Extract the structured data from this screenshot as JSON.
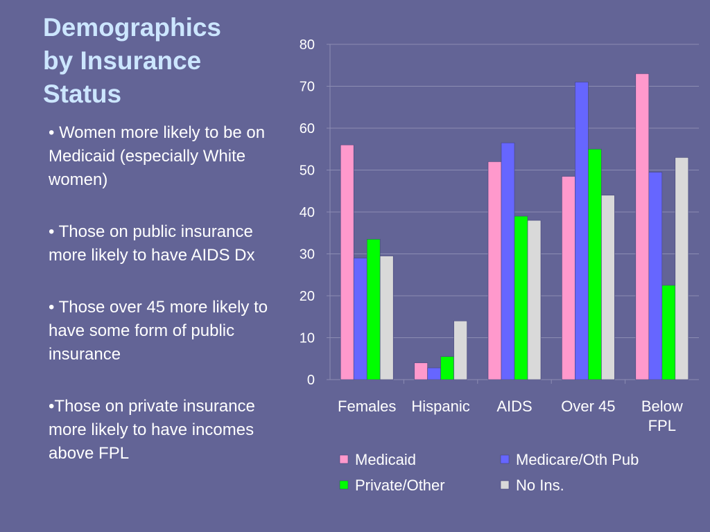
{
  "slide": {
    "title_lines": [
      "Demographics",
      "by Insurance",
      "Status"
    ],
    "bullets": [
      "• Women more likely to be on Medicaid (especially White women)",
      "• Those on public insurance more likely to have AIDS Dx",
      "• Those over 45 more likely to have some form of public insurance",
      "•Those on private insurance more likely to have incomes above FPL"
    ]
  },
  "chart_data": {
    "type": "bar",
    "categories": [
      [
        "Females"
      ],
      [
        "Hispanic"
      ],
      [
        "AIDS"
      ],
      [
        "Over 45"
      ],
      [
        "Below",
        "FPL"
      ]
    ],
    "series": [
      {
        "name": "Medicaid",
        "color": "#ff99cc",
        "values": [
          56,
          4,
          52,
          48.5,
          73
        ]
      },
      {
        "name": "Medicare/Oth Pub",
        "color": "#6666ff",
        "values": [
          29,
          2.8,
          56.5,
          71,
          49.5
        ]
      },
      {
        "name": "Private/Other",
        "color": "#00ff00",
        "values": [
          33.5,
          5.5,
          39,
          55,
          22.5
        ]
      },
      {
        "name": "No Ins.",
        "color": "#d9d9d9",
        "values": [
          29.5,
          14,
          38,
          44,
          53
        ]
      }
    ],
    "ylim": [
      0,
      80
    ],
    "yticks": [
      0,
      10,
      20,
      30,
      40,
      50,
      60,
      70,
      80
    ],
    "grid": true,
    "legend": "bottom"
  }
}
